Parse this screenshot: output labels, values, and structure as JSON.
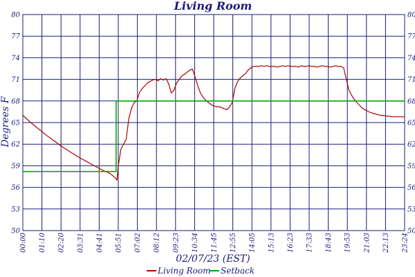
{
  "chart_data": {
    "type": "line",
    "title": "Living Room",
    "xlabel": "02/07/23 (EST)",
    "ylabel": "Degrees F",
    "ylim": [
      50,
      80
    ],
    "y_ticks": [
      50,
      53,
      56,
      59,
      62,
      65,
      68,
      71,
      74,
      77,
      80
    ],
    "y_tick_labels_left": [
      "50",
      "53",
      "56",
      "59",
      "62",
      "65",
      "68",
      "71",
      "74",
      "77",
      "80"
    ],
    "y_tick_labels_right": [
      "50",
      "53",
      "56",
      "59",
      "62",
      "65",
      "68",
      "71",
      "74",
      "77",
      "80"
    ],
    "x_tick_labels": [
      "00:00",
      "01:10",
      "02:20",
      "03:31",
      "04:41",
      "05:51",
      "07:02",
      "08:12",
      "09:23",
      "10:34",
      "11:45",
      "12:55",
      "14:05",
      "15:13",
      "16:23",
      "17:33",
      "18:43",
      "19:53",
      "21:03",
      "22:13",
      "23:24"
    ],
    "grid": true,
    "legend_position": "bottom-center",
    "series": [
      {
        "name": "Living Room",
        "color": "#aa0000",
        "x": [
          0,
          30,
          60,
          90,
          120,
          150,
          180,
          210,
          240,
          270,
          300,
          330,
          340,
          345,
          350,
          355,
          360,
          370,
          380,
          390,
          400,
          410,
          420,
          430,
          440,
          450,
          460,
          470,
          480,
          490,
          500,
          510,
          520,
          530,
          540,
          550,
          560,
          570,
          580,
          590,
          600,
          610,
          620,
          630,
          640,
          650,
          660,
          670,
          680,
          690,
          700,
          710,
          720,
          730,
          740,
          750,
          760,
          770,
          780,
          790,
          800,
          810,
          820,
          830,
          840,
          850,
          860,
          870,
          880,
          890,
          900,
          910,
          920,
          930,
          940,
          950,
          960,
          970,
          980,
          990,
          1000,
          1010,
          1020,
          1030,
          1040,
          1050,
          1060,
          1070,
          1080,
          1090,
          1100,
          1110,
          1120,
          1130,
          1140,
          1150,
          1160,
          1170,
          1180,
          1190,
          1200,
          1210,
          1220,
          1230,
          1240,
          1250,
          1260,
          1270,
          1280,
          1290,
          1300,
          1310,
          1320,
          1330,
          1340,
          1350,
          1360,
          1370,
          1380,
          1390,
          1400,
          1410,
          1420,
          1430,
          1440
        ],
        "y": [
          66.0,
          65.0,
          64.1,
          63.2,
          62.4,
          61.6,
          60.9,
          60.2,
          59.6,
          59.0,
          58.4,
          57.9,
          57.6,
          57.4,
          57.3,
          57.0,
          59.0,
          61.3,
          62.0,
          62.7,
          65.6,
          67.0,
          67.8,
          68.0,
          69.2,
          69.7,
          70.1,
          70.5,
          70.7,
          70.9,
          71.0,
          70.8,
          71.1,
          70.9,
          71.1,
          70.4,
          69.1,
          69.5,
          70.5,
          71.0,
          71.5,
          71.7,
          72.0,
          72.3,
          72.4,
          71.3,
          70.1,
          69.1,
          68.5,
          68.1,
          67.8,
          67.5,
          67.3,
          67.2,
          67.2,
          67.1,
          66.9,
          66.8,
          67.2,
          67.8,
          69.8,
          70.7,
          71.2,
          71.5,
          71.8,
          72.3,
          72.6,
          72.8,
          72.8,
          72.8,
          72.9,
          72.8,
          72.9,
          72.8,
          72.8,
          72.8,
          72.7,
          72.8,
          72.9,
          72.8,
          72.9,
          72.8,
          72.8,
          72.8,
          72.7,
          72.9,
          72.8,
          72.8,
          72.9,
          72.8,
          72.8,
          72.7,
          72.8,
          72.9,
          72.8,
          72.8,
          72.7,
          72.8,
          72.9,
          72.8,
          72.8,
          72.6,
          71.0,
          69.5,
          68.8,
          68.2,
          67.8,
          67.4,
          67.0,
          66.8,
          66.6,
          66.4,
          66.3,
          66.2,
          66.1,
          66.0,
          66.0,
          65.9,
          65.9,
          65.8,
          65.8,
          65.8,
          65.8,
          65.8,
          65.8
        ]
      },
      {
        "name": "Setback",
        "color": "#00aa00",
        "x": [
          0,
          352,
          352,
          1440
        ],
        "y": [
          58.2,
          58.2,
          68.0,
          68.0
        ]
      }
    ]
  }
}
